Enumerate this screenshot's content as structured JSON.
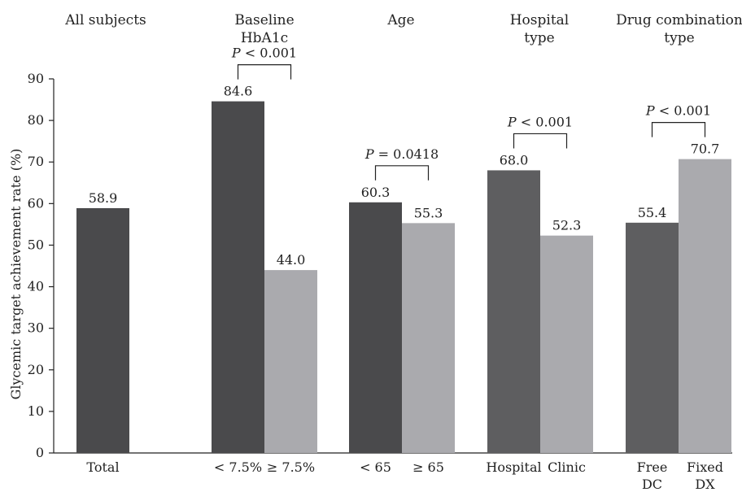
{
  "chart_data": {
    "type": "bar",
    "ylabel": "Glycemic target achievement rate (%)",
    "ylim": [
      0,
      90
    ],
    "yticks": [
      0,
      10,
      20,
      30,
      40,
      50,
      60,
      70,
      80,
      90
    ],
    "grid": false,
    "groups": [
      {
        "title_lines": [
          "All subjects"
        ],
        "bars": [
          {
            "category": "Total",
            "value": 58.9,
            "label": "58.9",
            "color": "#4a4a4c"
          }
        ],
        "pvalue": ""
      },
      {
        "title_lines": [
          "Baseline",
          "HbA1c"
        ],
        "bars": [
          {
            "category": "< 7.5%",
            "value": 84.6,
            "label": "84.6",
            "color": "#4a4a4c"
          },
          {
            "category": "≥ 7.5%",
            "value": 44.0,
            "label": "44.0",
            "color": "#aaaaae"
          }
        ],
        "pvalue": "P < 0.001"
      },
      {
        "title_lines": [
          "Age"
        ],
        "bars": [
          {
            "category": "< 65",
            "value": 60.3,
            "label": "60.3",
            "color": "#4a4a4c"
          },
          {
            "category": "≥ 65",
            "value": 55.3,
            "label": "55.3",
            "color": "#aaaaae"
          }
        ],
        "pvalue": "P = 0.0418"
      },
      {
        "title_lines": [
          "Hospital",
          "type"
        ],
        "bars": [
          {
            "category": "Hospital",
            "value": 68.0,
            "label": "68.0",
            "color": "#5e5e60"
          },
          {
            "category": "Clinic",
            "value": 52.3,
            "label": "52.3",
            "color": "#aaaaae"
          }
        ],
        "pvalue": "P < 0.001"
      },
      {
        "title_lines": [
          "Drug combination",
          "type"
        ],
        "bars": [
          {
            "category": "Free\nDC",
            "value": 55.4,
            "label": "55.4",
            "color": "#5e5e60"
          },
          {
            "category": "Fixed\nDX",
            "value": 70.7,
            "label": "70.7",
            "color": "#aaaaae"
          }
        ],
        "pvalue": "P < 0.001"
      }
    ]
  }
}
